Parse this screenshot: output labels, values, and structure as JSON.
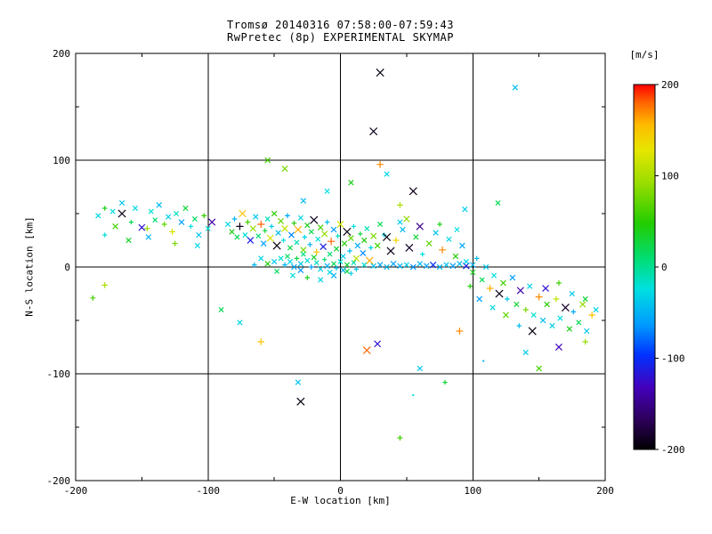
{
  "chart_data": {
    "type": "scatter",
    "title_line1": "Tromsø 20140316 07:58:00-07:59:43",
    "title_line2": "RwPretec (8p) EXPERIMENTAL SKYMAP",
    "xlabel": "E-W location [km]",
    "ylabel": "N-S location [km]",
    "xlim": [
      -200,
      200
    ],
    "ylim": [
      -200,
      200
    ],
    "xticks": [
      -200,
      -100,
      0,
      100,
      200
    ],
    "yticks": [
      200,
      100,
      0,
      -100,
      -200
    ],
    "minor_tick_step": 50,
    "grid_x": [
      -100,
      0,
      100
    ],
    "grid_y": [
      -100,
      0,
      100
    ],
    "grid_on": true,
    "colorbar": {
      "label": "[m/s]",
      "min": -200,
      "max": 200,
      "ticks": [
        200,
        100,
        0,
        -100,
        -200
      ],
      "stops": [
        [
          0.0,
          "#000000"
        ],
        [
          0.08,
          "#2c0058"
        ],
        [
          0.17,
          "#4400bb"
        ],
        [
          0.26,
          "#0033ff"
        ],
        [
          0.34,
          "#0099ff"
        ],
        [
          0.44,
          "#00e0e0"
        ],
        [
          0.52,
          "#00dd77"
        ],
        [
          0.62,
          "#22cc00"
        ],
        [
          0.73,
          "#99dd00"
        ],
        [
          0.82,
          "#e6e600"
        ],
        [
          0.89,
          "#ffbb00"
        ],
        [
          0.95,
          "#ff6600"
        ],
        [
          1.0,
          "#ff0000"
        ]
      ]
    },
    "point_format": [
      "x_km",
      "y_km",
      "velocity_ms",
      "marker(0=x,1=plus,2=dot)"
    ],
    "points": [
      [
        -183,
        48,
        -30,
        0
      ],
      [
        -178,
        55,
        40,
        1
      ],
      [
        -172,
        52,
        -25,
        0
      ],
      [
        -170,
        38,
        60,
        0
      ],
      [
        -165,
        60,
        -40,
        0
      ],
      [
        -165,
        50,
        -190,
        0
      ],
      [
        -158,
        42,
        20,
        1
      ],
      [
        -155,
        55,
        -30,
        0
      ],
      [
        -150,
        37,
        -120,
        0
      ],
      [
        -146,
        36,
        90,
        1
      ],
      [
        -143,
        52,
        -20,
        0
      ],
      [
        -140,
        44,
        10,
        0
      ],
      [
        -137,
        58,
        -45,
        0
      ],
      [
        -133,
        40,
        70,
        1
      ],
      [
        -130,
        47,
        -35,
        0
      ],
      [
        -127,
        33,
        120,
        1
      ],
      [
        -124,
        50,
        -15,
        0
      ],
      [
        -120,
        42,
        -60,
        0
      ],
      [
        -117,
        55,
        30,
        0
      ],
      [
        -113,
        38,
        -25,
        1
      ],
      [
        -110,
        45,
        15,
        0
      ],
      [
        -107,
        30,
        -40,
        0
      ],
      [
        -103,
        48,
        55,
        1
      ],
      [
        -100,
        36,
        -20,
        0
      ],
      [
        -97,
        42,
        -140,
        0
      ],
      [
        -178,
        30,
        -20,
        1
      ],
      [
        -160,
        25,
        35,
        0
      ],
      [
        -145,
        28,
        -50,
        0
      ],
      [
        -125,
        22,
        80,
        1
      ],
      [
        -108,
        20,
        -30,
        0
      ],
      [
        -187,
        -29,
        60,
        1
      ],
      [
        -178,
        -17,
        100,
        1
      ],
      [
        -85,
        40,
        -30,
        0
      ],
      [
        -82,
        33,
        40,
        0
      ],
      [
        -80,
        45,
        -50,
        1
      ],
      [
        -78,
        28,
        20,
        0
      ],
      [
        -76,
        38,
        -190,
        1
      ],
      [
        -74,
        50,
        150,
        0
      ],
      [
        -72,
        30,
        -20,
        0
      ],
      [
        -70,
        42,
        60,
        1
      ],
      [
        -68,
        25,
        -110,
        0
      ],
      [
        -66,
        36,
        90,
        0
      ],
      [
        -64,
        47,
        -40,
        0
      ],
      [
        -62,
        29,
        10,
        0
      ],
      [
        -60,
        40,
        180,
        1
      ],
      [
        -58,
        22,
        -60,
        0
      ],
      [
        -57,
        34,
        30,
        1
      ],
      [
        -55,
        45,
        -15,
        0
      ],
      [
        -53,
        27,
        120,
        0
      ],
      [
        -52,
        38,
        -35,
        1
      ],
      [
        -50,
        50,
        50,
        0
      ],
      [
        -48,
        20,
        -195,
        0
      ],
      [
        -47,
        32,
        -45,
        0
      ],
      [
        -45,
        43,
        70,
        0
      ],
      [
        -43,
        25,
        -25,
        1
      ],
      [
        -42,
        36,
        110,
        0
      ],
      [
        -40,
        48,
        -55,
        1
      ],
      [
        -38,
        18,
        25,
        0
      ],
      [
        -37,
        30,
        -70,
        0
      ],
      [
        -35,
        41,
        45,
        1
      ],
      [
        -33,
        23,
        -10,
        0
      ],
      [
        -32,
        35,
        160,
        0
      ],
      [
        -30,
        46,
        -30,
        0
      ],
      [
        -28,
        16,
        80,
        0
      ],
      [
        -27,
        28,
        -30,
        1
      ],
      [
        -25,
        39,
        40,
        0
      ],
      [
        -23,
        21,
        -50,
        1
      ],
      [
        -22,
        33,
        20,
        0
      ],
      [
        -20,
        44,
        -190,
        0
      ],
      [
        -18,
        14,
        150,
        1
      ],
      [
        -17,
        26,
        -20,
        0
      ],
      [
        -15,
        37,
        60,
        0
      ],
      [
        -13,
        19,
        -110,
        0
      ],
      [
        -12,
        31,
        90,
        0
      ],
      [
        -10,
        42,
        -40,
        1
      ],
      [
        -8,
        12,
        10,
        0
      ],
      [
        -7,
        24,
        180,
        1
      ],
      [
        -5,
        35,
        -60,
        0
      ],
      [
        -3,
        17,
        30,
        0
      ],
      [
        -2,
        29,
        -15,
        1
      ],
      [
        0,
        40,
        120,
        0
      ],
      [
        2,
        10,
        -35,
        0
      ],
      [
        3,
        22,
        50,
        0
      ],
      [
        5,
        33,
        -195,
        0
      ],
      [
        7,
        15,
        -45,
        1
      ],
      [
        8,
        27,
        70,
        0
      ],
      [
        10,
        38,
        -25,
        1
      ],
      [
        12,
        8,
        110,
        0
      ],
      [
        13,
        20,
        -55,
        0
      ],
      [
        15,
        31,
        25,
        1
      ],
      [
        17,
        13,
        -70,
        0
      ],
      [
        18,
        25,
        45,
        0
      ],
      [
        20,
        36,
        -10,
        0
      ],
      [
        22,
        6,
        160,
        0
      ],
      [
        23,
        18,
        -30,
        1
      ],
      [
        25,
        29,
        80,
        0
      ],
      [
        -50,
        5,
        -35,
        0
      ],
      [
        -45,
        8,
        -20,
        0
      ],
      [
        -42,
        2,
        -45,
        1
      ],
      [
        -40,
        10,
        15,
        0
      ],
      [
        -38,
        5,
        -30,
        0
      ],
      [
        -35,
        0,
        -55,
        0
      ],
      [
        -33,
        8,
        25,
        1
      ],
      [
        -30,
        3,
        -40,
        0
      ],
      [
        -28,
        12,
        5,
        0
      ],
      [
        -25,
        6,
        -25,
        0
      ],
      [
        -22,
        0,
        -60,
        1
      ],
      [
        -20,
        9,
        35,
        0
      ],
      [
        -18,
        4,
        -15,
        0
      ],
      [
        -15,
        -2,
        -35,
        0
      ],
      [
        -12,
        7,
        10,
        1
      ],
      [
        -10,
        1,
        -50,
        0
      ],
      [
        -8,
        -5,
        -30,
        0
      ],
      [
        -5,
        3,
        20,
        0
      ],
      [
        -3,
        -1,
        -40,
        1
      ],
      [
        0,
        5,
        -20,
        0
      ],
      [
        2,
        -3,
        -55,
        0
      ],
      [
        5,
        2,
        30,
        0
      ],
      [
        8,
        -6,
        -35,
        1
      ],
      [
        10,
        4,
        -10,
        0
      ],
      [
        -55,
        3,
        45,
        0
      ],
      [
        -60,
        8,
        -30,
        0
      ],
      [
        -65,
        2,
        -45,
        1
      ],
      [
        -48,
        -4,
        15,
        0
      ],
      [
        -36,
        -8,
        -25,
        0
      ],
      [
        -30,
        -3,
        -65,
        0
      ],
      [
        -25,
        -10,
        40,
        1
      ],
      [
        -15,
        -12,
        -30,
        0
      ],
      [
        -5,
        -8,
        -50,
        0
      ],
      [
        5,
        -4,
        25,
        0
      ],
      [
        12,
        -2,
        -40,
        1
      ],
      [
        18,
        2,
        -20,
        0
      ],
      [
        25,
        1,
        -40,
        0
      ],
      [
        30,
        2,
        -55,
        0
      ],
      [
        35,
        0,
        -45,
        0
      ],
      [
        40,
        3,
        -60,
        0
      ],
      [
        45,
        1,
        -50,
        0
      ],
      [
        50,
        2,
        -35,
        0
      ],
      [
        55,
        0,
        -65,
        0
      ],
      [
        60,
        3,
        -45,
        0
      ],
      [
        65,
        1,
        -55,
        0
      ],
      [
        70,
        2,
        -100,
        0
      ],
      [
        75,
        0,
        -50,
        0
      ],
      [
        80,
        2,
        -40,
        0
      ],
      [
        85,
        1,
        -60,
        0
      ],
      [
        90,
        3,
        -45,
        0
      ],
      [
        95,
        1,
        -110,
        0
      ],
      [
        100,
        2,
        -50,
        0
      ],
      [
        28,
        20,
        60,
        0
      ],
      [
        33,
        30,
        -30,
        1
      ],
      [
        38,
        15,
        -190,
        0
      ],
      [
        42,
        25,
        140,
        1
      ],
      [
        47,
        35,
        -45,
        0
      ],
      [
        52,
        18,
        -185,
        0
      ],
      [
        57,
        28,
        30,
        0
      ],
      [
        62,
        12,
        -25,
        1
      ],
      [
        67,
        22,
        70,
        0
      ],
      [
        72,
        32,
        -40,
        0
      ],
      [
        77,
        16,
        170,
        1
      ],
      [
        82,
        26,
        -30,
        0
      ],
      [
        87,
        10,
        50,
        0
      ],
      [
        92,
        20,
        -55,
        0
      ],
      [
        30,
        40,
        20,
        0
      ],
      [
        45,
        42,
        -35,
        0
      ],
      [
        60,
        38,
        -150,
        0
      ],
      [
        75,
        40,
        40,
        1
      ],
      [
        88,
        35,
        -25,
        0
      ],
      [
        35,
        28,
        -195,
        0
      ],
      [
        50,
        45,
        90,
        0
      ],
      [
        95,
        5,
        -30,
        0
      ],
      [
        100,
        -5,
        40,
        0
      ],
      [
        103,
        8,
        -45,
        1
      ],
      [
        107,
        -12,
        20,
        0
      ],
      [
        110,
        0,
        -35,
        0
      ],
      [
        113,
        -20,
        160,
        1
      ],
      [
        116,
        -8,
        -25,
        0
      ],
      [
        120,
        -25,
        -190,
        0
      ],
      [
        123,
        -15,
        60,
        0
      ],
      [
        126,
        -30,
        -40,
        1
      ],
      [
        130,
        -10,
        -60,
        0
      ],
      [
        133,
        -35,
        30,
        0
      ],
      [
        136,
        -22,
        -140,
        0
      ],
      [
        140,
        -40,
        80,
        1
      ],
      [
        143,
        -18,
        -30,
        0
      ],
      [
        146,
        -45,
        -20,
        0
      ],
      [
        150,
        -28,
        170,
        1
      ],
      [
        153,
        -50,
        -45,
        0
      ],
      [
        156,
        -35,
        50,
        0
      ],
      [
        160,
        -55,
        -35,
        0
      ],
      [
        163,
        -30,
        110,
        1
      ],
      [
        166,
        -48,
        -25,
        0
      ],
      [
        170,
        -38,
        -185,
        0
      ],
      [
        173,
        -58,
        40,
        0
      ],
      [
        176,
        -42,
        -55,
        1
      ],
      [
        180,
        -52,
        20,
        0
      ],
      [
        183,
        -35,
        90,
        0
      ],
      [
        186,
        -60,
        -40,
        0
      ],
      [
        190,
        -45,
        150,
        1
      ],
      [
        193,
        -40,
        -30,
        0
      ],
      [
        155,
        -20,
        -120,
        0
      ],
      [
        165,
        -15,
        60,
        1
      ],
      [
        175,
        -25,
        -35,
        0
      ],
      [
        185,
        -30,
        30,
        0
      ],
      [
        145,
        -60,
        -195,
        0
      ],
      [
        135,
        -55,
        -45,
        1
      ],
      [
        125,
        -45,
        70,
        0
      ],
      [
        115,
        -38,
        -30,
        0
      ],
      [
        105,
        -30,
        -60,
        0
      ],
      [
        98,
        -18,
        45,
        1
      ],
      [
        30,
        182,
        -195,
        0
      ],
      [
        25,
        127,
        -190,
        0
      ],
      [
        132,
        168,
        -45,
        0
      ],
      [
        -55,
        100,
        60,
        0
      ],
      [
        -42,
        92,
        80,
        0
      ],
      [
        30,
        96,
        170,
        1
      ],
      [
        35,
        87,
        -30,
        0
      ],
      [
        8,
        79,
        40,
        0
      ],
      [
        55,
        71,
        -190,
        0
      ],
      [
        -10,
        71,
        -25,
        0
      ],
      [
        94,
        54,
        -35,
        0
      ],
      [
        119,
        60,
        20,
        0
      ],
      [
        -28,
        62,
        -45,
        0
      ],
      [
        45,
        58,
        100,
        1
      ],
      [
        -30,
        -126,
        -195,
        0
      ],
      [
        -32,
        -108,
        -40,
        0
      ],
      [
        45,
        -160,
        60,
        1
      ],
      [
        20,
        -78,
        180,
        0
      ],
      [
        28,
        -72,
        -120,
        0
      ],
      [
        -60,
        -70,
        150,
        1
      ],
      [
        -76,
        -52,
        -30,
        0
      ],
      [
        -90,
        -40,
        20,
        0
      ],
      [
        60,
        -95,
        -40,
        0
      ],
      [
        79,
        -108,
        30,
        1
      ],
      [
        150,
        -95,
        60,
        0
      ],
      [
        140,
        -80,
        -35,
        0
      ],
      [
        165,
        -75,
        -130,
        0
      ],
      [
        185,
        -70,
        90,
        1
      ],
      [
        90,
        -60,
        170,
        1
      ],
      [
        108,
        -88,
        -45,
        2
      ],
      [
        55,
        -120,
        -25,
        2
      ]
    ]
  }
}
